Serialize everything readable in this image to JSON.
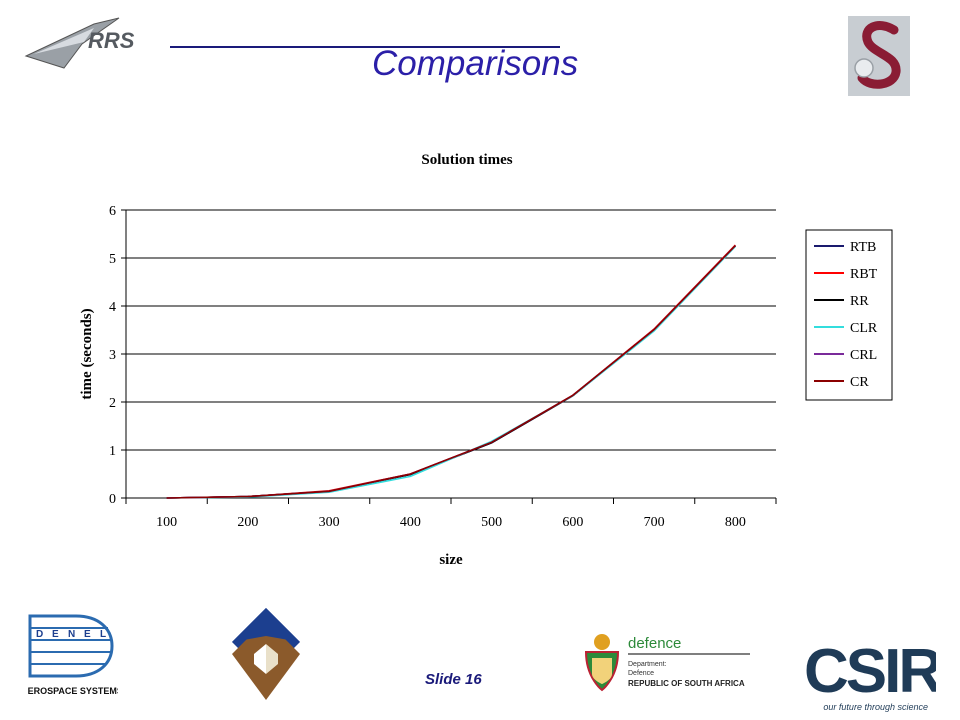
{
  "slide": {
    "title": "Comparisons",
    "slide_number": "Slide 16"
  },
  "logos": {
    "rrs": "RRS",
    "denel_letters": [
      "D",
      "E",
      "N",
      "E",
      "L"
    ],
    "denel_caption": "AEROSPACE SYSTEMS",
    "defence_name": "defence",
    "defence_line1": "Department:",
    "defence_line2": "Defence",
    "defence_line3": "REPUBLIC OF SOUTH AFRICA",
    "csir_name": "CSIR",
    "csir_tagline": "our future through science"
  },
  "chart_data": {
    "type": "line",
    "title": "Solution times",
    "xlabel": "size",
    "ylabel": "time (seconds)",
    "categories": [
      "100",
      "200",
      "300",
      "400",
      "500",
      "600",
      "700",
      "800"
    ],
    "ylim": [
      0,
      6
    ],
    "yticks": [
      "0",
      "1",
      "2",
      "3",
      "4",
      "5",
      "6"
    ],
    "grid": "horizontal",
    "legend_position": "right",
    "series": [
      {
        "name": "RTB",
        "color": "#1a1a6e",
        "values": [
          0.0,
          0.03,
          0.14,
          0.49,
          1.15,
          2.13,
          3.5,
          5.25
        ]
      },
      {
        "name": "RBT",
        "color": "#ff0000",
        "values": [
          0.0,
          0.03,
          0.15,
          0.5,
          1.16,
          2.14,
          3.52,
          5.27
        ]
      },
      {
        "name": "RR",
        "color": "#000000",
        "values": [
          0.0,
          0.03,
          0.14,
          0.49,
          1.15,
          2.13,
          3.5,
          5.25
        ]
      },
      {
        "name": "CLR",
        "color": "#33dddd",
        "values": [
          0.0,
          0.02,
          0.12,
          0.45,
          1.18,
          2.13,
          3.48,
          5.24
        ]
      },
      {
        "name": "CRL",
        "color": "#7a2a9a",
        "values": [
          0.0,
          0.03,
          0.14,
          0.5,
          1.16,
          2.14,
          3.51,
          5.26
        ]
      },
      {
        "name": "CR",
        "color": "#8b0000",
        "values": [
          0.0,
          0.03,
          0.14,
          0.5,
          1.16,
          2.14,
          3.51,
          5.26
        ]
      }
    ]
  }
}
